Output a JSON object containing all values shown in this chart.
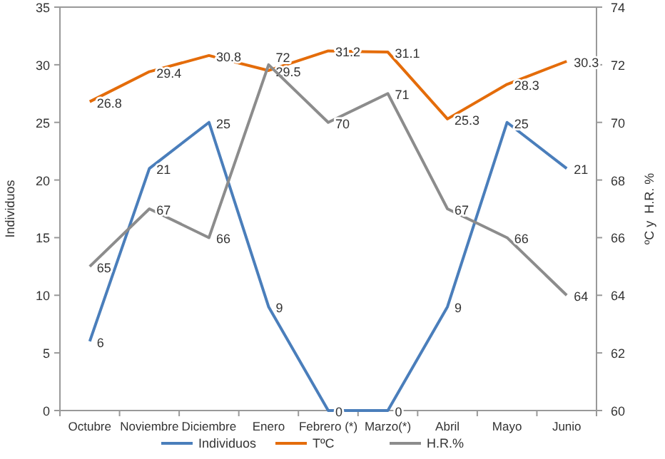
{
  "chart_data": {
    "type": "line",
    "ylabel": "Individuos",
    "y2label": "ºC y  H.R. %",
    "categories": [
      "Octubre",
      "Noviembre",
      "Diciembre",
      "Enero",
      "Febrero (*)",
      "Marzo(*)",
      "Abril",
      "Mayo",
      "Junio"
    ],
    "series": [
      {
        "name": "Individuos",
        "color": "#4a7ebb",
        "values": [
          6,
          21,
          25,
          9,
          0,
          0,
          9,
          25,
          21
        ]
      },
      {
        "name": "TºC",
        "color": "#e46c0a",
        "values": [
          26.8,
          29.4,
          30.8,
          29.5,
          31.2,
          31.1,
          25.3,
          28.3,
          30.3
        ]
      },
      {
        "name": "H.R.%",
        "color": "#8c8c8c",
        "axis": "y2",
        "values": [
          65,
          67,
          66,
          72,
          70,
          71,
          67,
          66,
          64
        ]
      }
    ],
    "ylim": [
      0,
      35
    ],
    "yticks": [
      0,
      5,
      10,
      15,
      20,
      25,
      30,
      35
    ],
    "y2lim": [
      60,
      74
    ],
    "y2ticks": [
      60,
      62,
      64,
      66,
      68,
      70,
      72,
      74
    ],
    "data_labels": true,
    "legend": "bottom",
    "grid": false,
    "marker": "none"
  }
}
